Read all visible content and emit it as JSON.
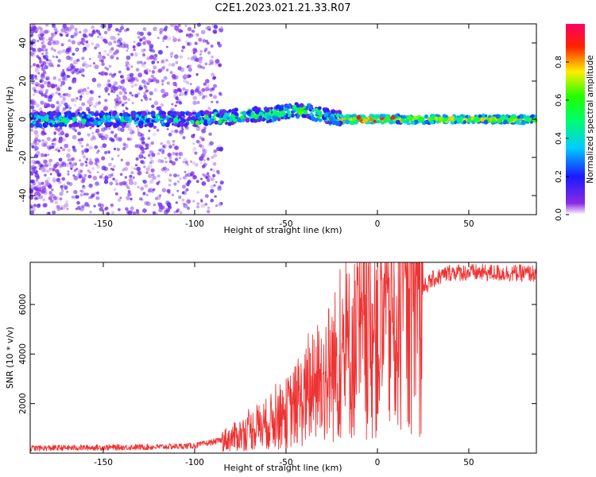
{
  "figure": {
    "title": "C2E1.2023.021.21.33.R07"
  },
  "chart_data": [
    {
      "type": "heatmap",
      "xlabel": "Height of straight line (km)",
      "ylabel": "Frequency (Hz)",
      "xlim": [
        -190,
        87
      ],
      "ylim": [
        -50,
        50
      ],
      "x_ticks": [
        -150,
        -100,
        -50,
        0,
        50
      ],
      "y_ticks": [
        -40,
        -20,
        0,
        20,
        40
      ],
      "colorbar": {
        "label": "Normalized spectral amplitude",
        "range": [
          0,
          1
        ],
        "ticks": [
          "0.0",
          "0.2",
          "0.4",
          "0.6",
          "0.8"
        ],
        "colormap": "rainbow (purple-blue-cyan-green-yellow-red-magenta)"
      },
      "ridge": [
        {
          "x": -190,
          "y": 0
        },
        {
          "x": -100,
          "y": 0
        },
        {
          "x": -80,
          "y": 1
        },
        {
          "x": -70,
          "y": 3
        },
        {
          "x": -60,
          "y": 2
        },
        {
          "x": -50,
          "y": 4
        },
        {
          "x": -40,
          "y": 5
        },
        {
          "x": -30,
          "y": 2
        },
        {
          "x": -20,
          "y": 0
        },
        {
          "x": 0,
          "y": 0
        },
        {
          "x": 87,
          "y": 0
        }
      ],
      "grid": false
    },
    {
      "type": "line",
      "xlabel": "Height of straight line (km)",
      "ylabel": "SNR (10 * v/v)",
      "xlim": [
        -190,
        87
      ],
      "ylim": [
        0,
        7700
      ],
      "x_ticks": [
        -150,
        -100,
        -50,
        0,
        50
      ],
      "y_ticks": [
        2000,
        4000,
        6000
      ],
      "color": "#ee3333",
      "envelope": [
        {
          "x": -190,
          "y": 200
        },
        {
          "x": -120,
          "y": 250
        },
        {
          "x": -100,
          "y": 300
        },
        {
          "x": -80,
          "y": 600
        },
        {
          "x": -60,
          "y": 1200
        },
        {
          "x": -50,
          "y": 1600
        },
        {
          "x": -40,
          "y": 2200
        },
        {
          "x": -30,
          "y": 3000
        },
        {
          "x": -20,
          "y": 3800
        },
        {
          "x": -10,
          "y": 4400
        },
        {
          "x": 0,
          "y": 4900
        },
        {
          "x": 10,
          "y": 5500
        },
        {
          "x": 20,
          "y": 6300
        },
        {
          "x": 30,
          "y": 7000
        },
        {
          "x": 40,
          "y": 7300
        },
        {
          "x": 87,
          "y": 7250
        }
      ],
      "grid": false
    }
  ]
}
